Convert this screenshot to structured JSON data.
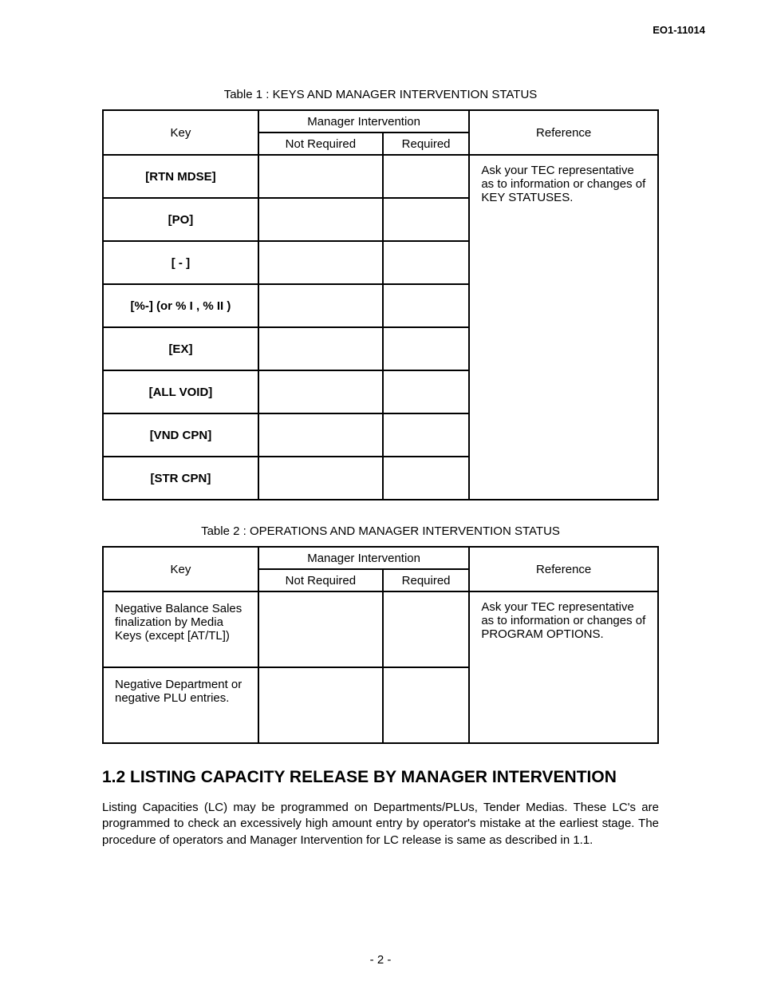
{
  "doc_id": "EO1-11014",
  "table1": {
    "caption": "Table 1 : KEYS AND MANAGER INTERVENTION STATUS",
    "header": {
      "key": "Key",
      "mgr": "Manager Intervention",
      "not_req": "Not Required",
      "req": "Required",
      "ref": "Reference"
    },
    "rows": [
      "[RTN MDSE]",
      "[PO]",
      "[ - ]",
      "[%-] (or % I , % II )",
      "[EX]",
      "[ALL VOID]",
      "[VND CPN]",
      "[STR CPN]"
    ],
    "reference": "Ask your TEC representative as to information or changes of KEY STATUSES."
  },
  "table2": {
    "caption": "Table 2 : OPERATIONS AND MANAGER INTERVENTION STATUS",
    "header": {
      "key": "Key",
      "mgr": "Manager Intervention",
      "not_req": "Not Required",
      "req": "Required",
      "ref": "Reference"
    },
    "rows": [
      "Negative Balance Sales finalization by Media Keys (except [AT/TL])",
      "Negative Department or negative PLU entries."
    ],
    "reference": "Ask your TEC representative as to information or changes of PROGRAM OPTIONS."
  },
  "section": {
    "heading": "1.2  LISTING CAPACITY RELEASE BY MANAGER INTERVENTION",
    "body": "Listing Capacities (LC) may be programmed on Departments/PLUs, Tender Medias.  These LC's are programmed to check an excessively high amount entry by operator's mistake at the earliest stage. The procedure of operators and Manager Intervention for LC release is same as described in 1.1."
  },
  "page_num": "- 2 -"
}
